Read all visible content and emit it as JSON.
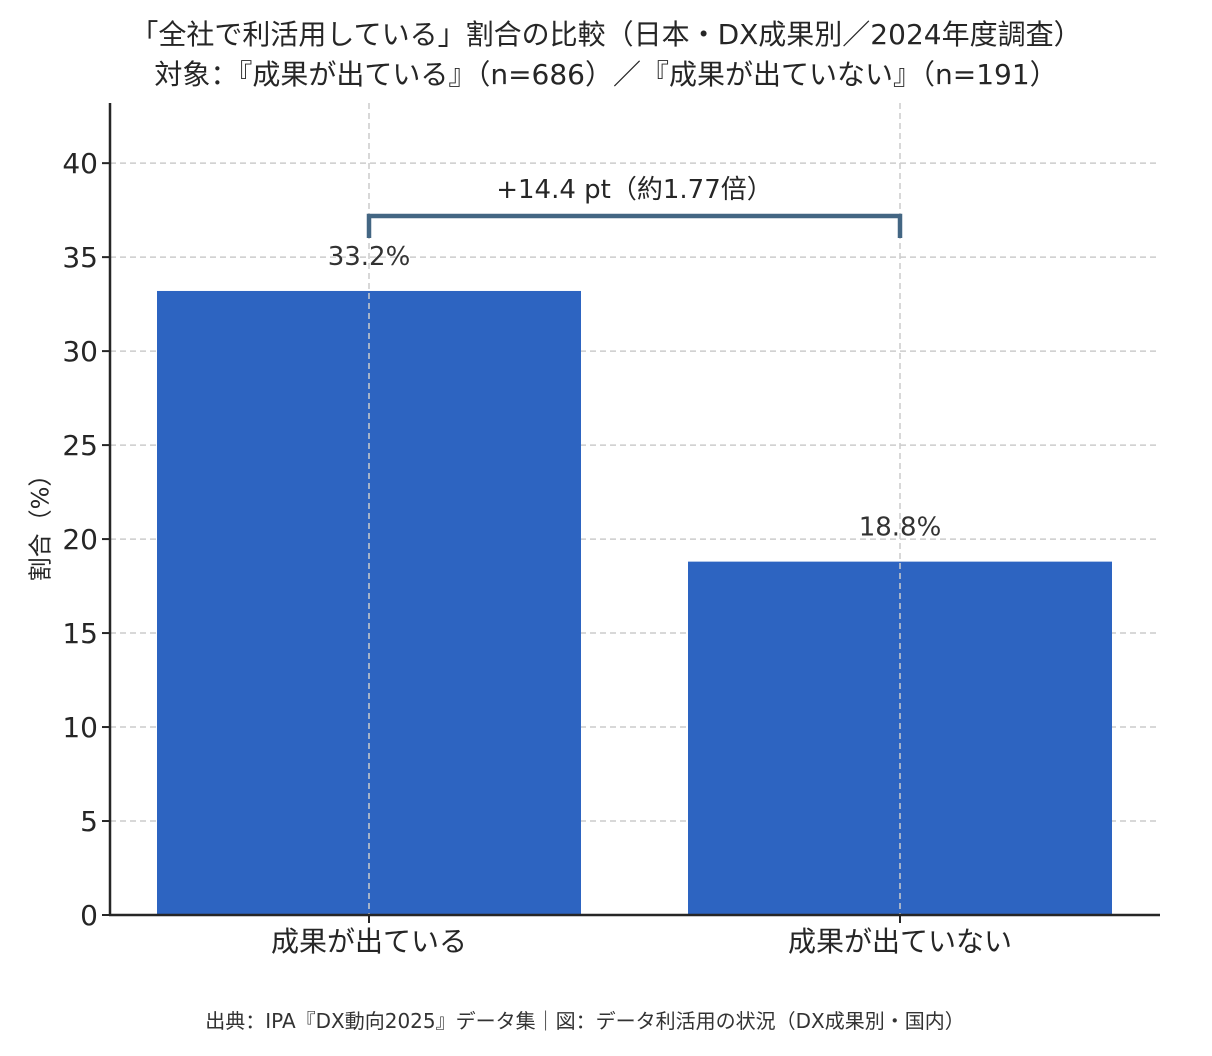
{
  "header": {
    "title_line1": "「全社で利活用している」割合の比較（日本・DX成果別／2024年度調査）",
    "title_line2": "対象：『成果が出ている』（n=686）／『成果が出ていない』（n=191）"
  },
  "footer": {
    "source": "出典：IPA『DX動向2025』データ集｜図：データ利活用の状況（DX成果別・国内）"
  },
  "colors": {
    "bar": "#2d64c1",
    "bracket": "#436683",
    "axis": "#262626",
    "grid": "#cccccc",
    "text": "#262626"
  },
  "chart_data": {
    "type": "bar",
    "title": "「全社で利活用している」割合の比較（日本・DX成果別／2024年度調査）",
    "subtitle": "対象：『成果が出ている』（n=686）／『成果が出ていない』（n=191）",
    "categories": [
      "成果が出ている",
      "成果が出ていない"
    ],
    "values": [
      33.2,
      18.8
    ],
    "value_labels": [
      "33.2%",
      "18.8%"
    ],
    "xlabel": "",
    "ylabel": "割合（%）",
    "ylim": [
      0,
      43.2
    ],
    "yticks": [
      0,
      5,
      10,
      15,
      20,
      25,
      30,
      35,
      40
    ],
    "grid": true,
    "legend": null,
    "annotations": [
      {
        "type": "bracket",
        "from": "成果が出ている",
        "to": "成果が出ていない",
        "y": 37.2,
        "text": "+14.4 pt（約1.77倍）"
      }
    ],
    "source": "出典：IPA『DX動向2025』データ集｜図：データ利活用の状況（DX成果別・国内）"
  }
}
